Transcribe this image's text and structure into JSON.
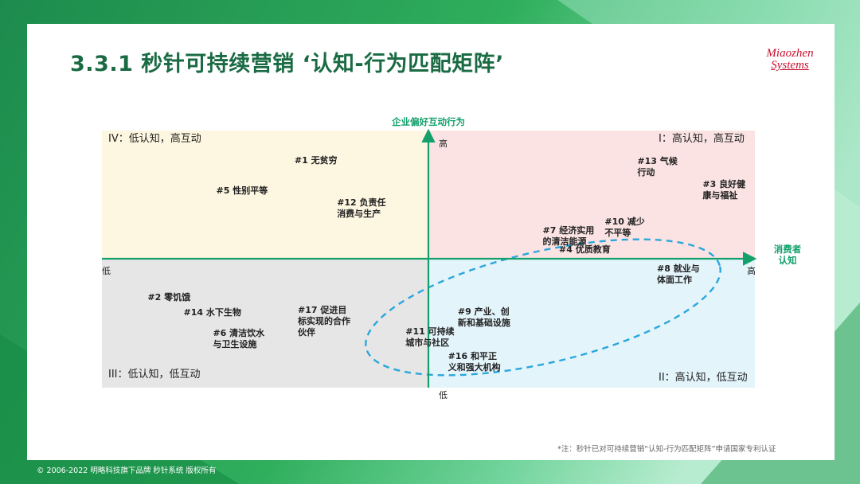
{
  "slide": {
    "title": "3.3.1 秒针可持续营销 ‘认知-行为匹配矩阵’",
    "logo_line1": "Miaozhen",
    "logo_line2": "Systems",
    "note": "*注：秒针已对可持续营销“认知-行为匹配矩阵”申请国家专利认证",
    "copyright": "© 2006-2022 明略科技旗下品牌 秒针系统 版权所有"
  },
  "colors": {
    "brand_green": "#1a6b43",
    "axis_green": "#13a06b",
    "ellipse": "#2aa7dc",
    "quad_I": "#fbe3e3",
    "quad_II": "#e3f4fb",
    "quad_III": "#e6e6e6",
    "quad_IV": "#fdf6e0",
    "logo_red": "#c8102e"
  },
  "chart_data": {
    "type": "scatter",
    "xlabel": "消费者\n认知",
    "ylabel": "企业偏好互动行为",
    "x_low_label": "低",
    "x_high_label": "高",
    "y_low_label": "低",
    "y_high_label": "高",
    "quadrants": {
      "I": "I：高认知，高互动",
      "II": "II：高认知，低互动",
      "III": "III：低认知，低互动",
      "IV": "IV：低认知，高互动"
    },
    "points": [
      {
        "id": 1,
        "label": "#1 无贫穷",
        "x": -0.41,
        "y": 0.81
      },
      {
        "id": 5,
        "label": "#5 性别平等",
        "x": -0.65,
        "y": 0.57
      },
      {
        "id": 12,
        "label": "#12 负责任\n消费与生产",
        "x": -0.28,
        "y": 0.48
      },
      {
        "id": 13,
        "label": "#13 气候\n行动",
        "x": 0.64,
        "y": 0.8
      },
      {
        "id": 3,
        "label": "#3 良好健\n康与福祉",
        "x": 0.84,
        "y": 0.62
      },
      {
        "id": 10,
        "label": "#10 减少\n不平等",
        "x": 0.54,
        "y": 0.33
      },
      {
        "id": 7,
        "label": "#7 经济实用\n的清洁能源",
        "x": 0.35,
        "y": 0.26
      },
      {
        "id": 4,
        "label": "#4 优质教育",
        "x": 0.4,
        "y": 0.11
      },
      {
        "id": 8,
        "label": "#8 就业与\n体面工作",
        "x": 0.7,
        "y": -0.04
      },
      {
        "id": 2,
        "label": "#2 零饥饿",
        "x": -0.86,
        "y": -0.26
      },
      {
        "id": 14,
        "label": "#14 水下生物",
        "x": -0.75,
        "y": -0.38
      },
      {
        "id": 17,
        "label": "#17 促进目\n标实现的合作\n伙伴",
        "x": -0.4,
        "y": -0.36
      },
      {
        "id": 6,
        "label": "#6 清洁饮水\n与卫生设施",
        "x": -0.66,
        "y": -0.54
      },
      {
        "id": 9,
        "label": "#9 产业、创\n新和基础设施",
        "x": 0.09,
        "y": -0.37
      },
      {
        "id": 11,
        "label": "#11 可持续\n城市与社区",
        "x": -0.07,
        "y": -0.53
      },
      {
        "id": 16,
        "label": "#16 和平正\n义和强大机构",
        "x": 0.06,
        "y": -0.72
      }
    ],
    "highlight": {
      "shape": "dashed-ellipse",
      "covers_points": [
        8,
        9,
        11,
        16
      ]
    },
    "xlim": [
      -1,
      1
    ],
    "ylim": [
      -1,
      1
    ],
    "grid": false,
    "legend": "none"
  }
}
